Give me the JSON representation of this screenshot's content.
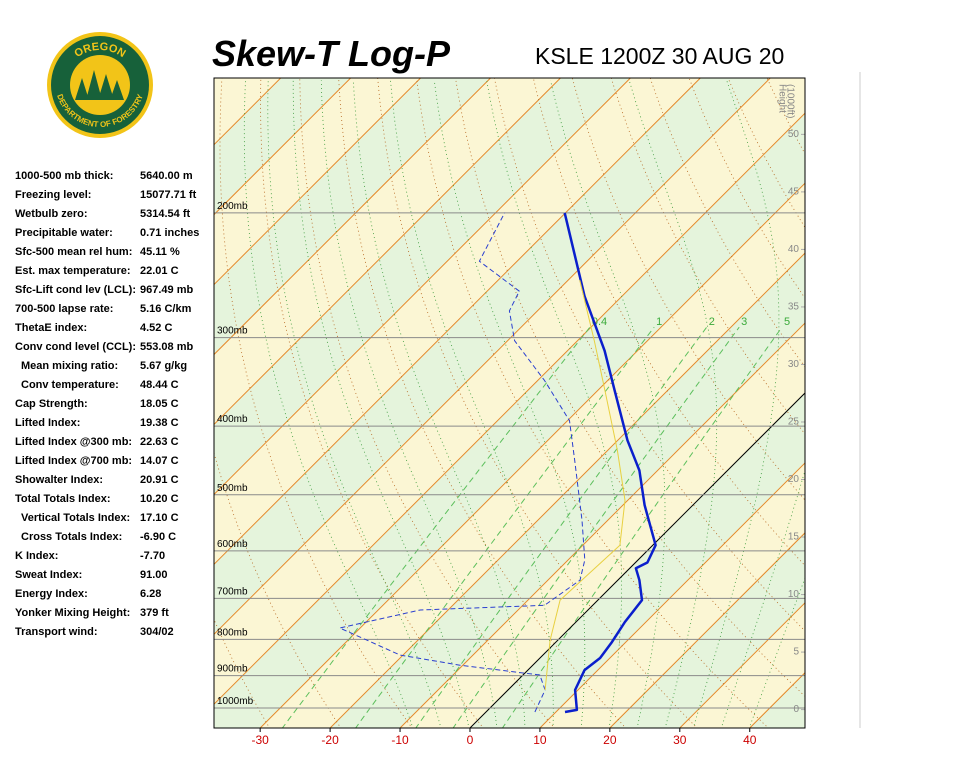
{
  "header": {
    "logo_top": "OREGON",
    "logo_bottom": "DEPARTMENT OF FORESTRY",
    "title": "Skew-T Log-P",
    "subtitle": "KSLE 1200Z 30 AUG 20"
  },
  "indices": [
    {
      "label": "1000-500 mb thick:",
      "value": "5640.00 m"
    },
    {
      "label": "Freezing level:",
      "value": "15077.71 ft"
    },
    {
      "label": "Wetbulb zero:",
      "value": "5314.54 ft"
    },
    {
      "label": "Precipitable water:",
      "value": "0.71 inches"
    },
    {
      "label": "Sfc-500 mean rel hum:",
      "value": "45.11 %"
    },
    {
      "label": "Est. max temperature:",
      "value": "22.01 C"
    },
    {
      "label": "Sfc-Lift cond lev (LCL):",
      "value": "967.49 mb"
    },
    {
      "label": "700-500 lapse rate:",
      "value": "5.16 C/km"
    },
    {
      "label": "ThetaE index:",
      "value": "4.52 C"
    },
    {
      "label": "Conv cond level (CCL):",
      "value": "553.08 mb"
    },
    {
      "label": "Mean mixing ratio:",
      "value": "5.67 g/kg"
    },
    {
      "label": "Conv temperature:",
      "value": "48.44 C"
    },
    {
      "label": "Cap Strength:",
      "value": "18.05 C"
    },
    {
      "label": "Lifted Index:",
      "value": "19.38 C"
    },
    {
      "label": "Lifted Index @300 mb:",
      "value": "22.63 C"
    },
    {
      "label": "Lifted Index @700 mb:",
      "value": "14.07 C"
    },
    {
      "label": "Showalter Index:",
      "value": "20.91 C"
    },
    {
      "label": "Total Totals Index:",
      "value": "10.20 C"
    },
    {
      "label": "Vertical Totals Index:",
      "value": "17.10 C"
    },
    {
      "label": "Cross Totals Index:",
      "value": "-6.90 C"
    },
    {
      "label": "K Index:",
      "value": "-7.70"
    },
    {
      "label": "Sweat Index:",
      "value": "91.00"
    },
    {
      "label": "Energy Index:",
      "value": "6.28"
    },
    {
      "label": "Yonker Mixing Height:",
      "value": "379 ft"
    },
    {
      "label": "Transport wind:",
      "value": "304/02"
    }
  ],
  "chart_data": {
    "type": "skewt",
    "log_y": true,
    "xlim": [
      -36.6,
      47.9
    ],
    "xticks": [
      -30,
      -20,
      -10,
      0,
      10,
      20,
      30,
      40
    ],
    "ylim": [
      1067,
      129
    ],
    "yticks": [
      {
        "value": 1000,
        "label": "1000mb"
      },
      {
        "value": 900,
        "label": "900mb"
      },
      {
        "value": 800,
        "label": "800mb"
      },
      {
        "value": 700,
        "label": "700mb"
      },
      {
        "value": 600,
        "label": "600mb"
      },
      {
        "value": 500,
        "label": "500mb"
      },
      {
        "value": 400,
        "label": "400mb"
      },
      {
        "value": 300,
        "label": "300mb"
      },
      {
        "value": 200,
        "label": "200mb"
      }
    ],
    "y2_label": [
      "Height",
      "(1000ft)"
    ],
    "y2lim": [
      -1.6,
      54.9
    ],
    "y2ticks": [
      0,
      5,
      10,
      15,
      20,
      25,
      30,
      35,
      40,
      45,
      50
    ],
    "mixing_ratio_lines": [
      0.4,
      1,
      2,
      3,
      5
    ],
    "series": [
      {
        "color": "#0a1fcc",
        "line_width": 2.5,
        "dashed": false,
        "x": [
          11.3,
          12.7,
          9.6,
          8.1,
          8.6,
          8.0,
          7.0,
          6.3,
          3.1,
          0.9,
          1.7,
          0.4,
          -6.9,
          -12.6,
          -18.6,
          -27.6,
          -34.7,
          -45.4,
          -60.1
        ],
        "values": [
          1013,
          1006,
          943,
          884,
          850,
          807,
          756,
          704,
          660,
          635,
          623,
          589,
          517,
          462,
          419,
          356,
          313,
          262,
          200
        ]
      },
      {
        "color": "#2a3fd0",
        "line_width": 1,
        "dashed": true,
        "x": [
          7.0,
          5.3,
          2.4,
          -10.4,
          -20.4,
          -32.9,
          -24.0,
          -6.9,
          -5.4,
          -7.6,
          -13.7,
          -23.3,
          -29.7,
          -39.0,
          -49.0,
          -54.0,
          -55.4,
          -65.4,
          -68.7
        ],
        "values": [
          1013,
          943,
          898,
          870,
          842,
          771,
          727,
          716,
          660,
          618,
          543,
          447,
          393,
          345,
          303,
          275,
          258,
          234,
          200
        ]
      },
      {
        "color": "#e8d040",
        "line_width": 1,
        "dashed": false,
        "x": [
          5.3,
          -1.1,
          -5.4,
          -4.7,
          -10.4,
          -18.6,
          -29.0,
          -37.6,
          -48.3
        ],
        "values": [
          943,
          802,
          704,
          589,
          509,
          433,
          356,
          303,
          249
        ]
      }
    ]
  }
}
